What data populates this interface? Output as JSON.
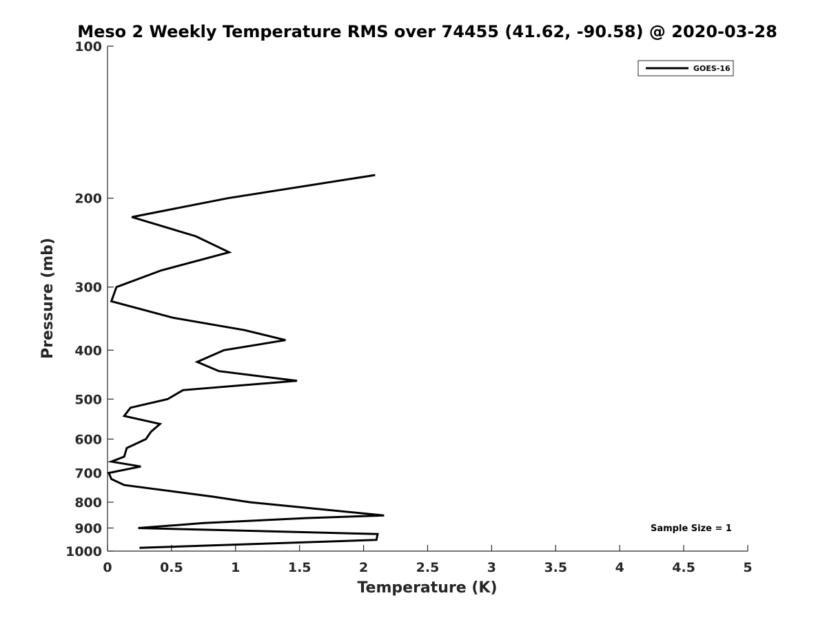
{
  "chart_data": {
    "type": "line",
    "title": "Meso 2 Weekly Temperature RMS over 74455 (41.62, -90.58) @ 2020-03-28",
    "xlabel": "Temperature (K)",
    "ylabel": "Pressure (mb)",
    "xlim": [
      0,
      5
    ],
    "ylim": [
      100,
      1000
    ],
    "y_scale": "log",
    "y_reversed": true,
    "x_ticks": [
      0,
      0.5,
      1,
      1.5,
      2,
      2.5,
      3,
      3.5,
      4,
      4.5,
      5
    ],
    "x_tick_labels": [
      "0",
      "0.5",
      "1",
      "1.5",
      "2",
      "2.5",
      "3",
      "3.5",
      "4",
      "4.5",
      "5"
    ],
    "y_ticks": [
      100,
      200,
      300,
      400,
      500,
      600,
      700,
      800,
      900,
      1000
    ],
    "y_tick_labels": [
      "100",
      "200",
      "300",
      "400",
      "500",
      "600",
      "700",
      "800",
      "900",
      "1000"
    ],
    "grid": false,
    "legend_position": "top-right",
    "annotation": "Sample Size = 1",
    "series": [
      {
        "name": "GOES-16",
        "color": "#000000",
        "points": [
          {
            "x": 2.09,
            "y": 180
          },
          {
            "x": 0.94,
            "y": 200
          },
          {
            "x": 0.19,
            "y": 218
          },
          {
            "x": 0.69,
            "y": 238
          },
          {
            "x": 0.95,
            "y": 256
          },
          {
            "x": 0.42,
            "y": 278
          },
          {
            "x": 0.07,
            "y": 300
          },
          {
            "x": 0.03,
            "y": 320
          },
          {
            "x": 0.51,
            "y": 345
          },
          {
            "x": 1.07,
            "y": 365
          },
          {
            "x": 1.39,
            "y": 382
          },
          {
            "x": 0.91,
            "y": 400
          },
          {
            "x": 0.7,
            "y": 422
          },
          {
            "x": 0.87,
            "y": 440
          },
          {
            "x": 1.48,
            "y": 460
          },
          {
            "x": 0.59,
            "y": 480
          },
          {
            "x": 0.47,
            "y": 500
          },
          {
            "x": 0.18,
            "y": 520
          },
          {
            "x": 0.13,
            "y": 540
          },
          {
            "x": 0.41,
            "y": 560
          },
          {
            "x": 0.34,
            "y": 580
          },
          {
            "x": 0.3,
            "y": 600
          },
          {
            "x": 0.15,
            "y": 625
          },
          {
            "x": 0.13,
            "y": 650
          },
          {
            "x": 0.03,
            "y": 665
          },
          {
            "x": 0.26,
            "y": 680
          },
          {
            "x": 0.01,
            "y": 700
          },
          {
            "x": 0.03,
            "y": 720
          },
          {
            "x": 0.13,
            "y": 740
          },
          {
            "x": 0.82,
            "y": 780
          },
          {
            "x": 1.11,
            "y": 800
          },
          {
            "x": 2.16,
            "y": 850
          },
          {
            "x": 1.56,
            "y": 860
          },
          {
            "x": 0.75,
            "y": 880
          },
          {
            "x": 0.24,
            "y": 900
          },
          {
            "x": 2.11,
            "y": 925
          },
          {
            "x": 2.1,
            "y": 950
          },
          {
            "x": 0.25,
            "y": 985
          }
        ]
      }
    ]
  }
}
